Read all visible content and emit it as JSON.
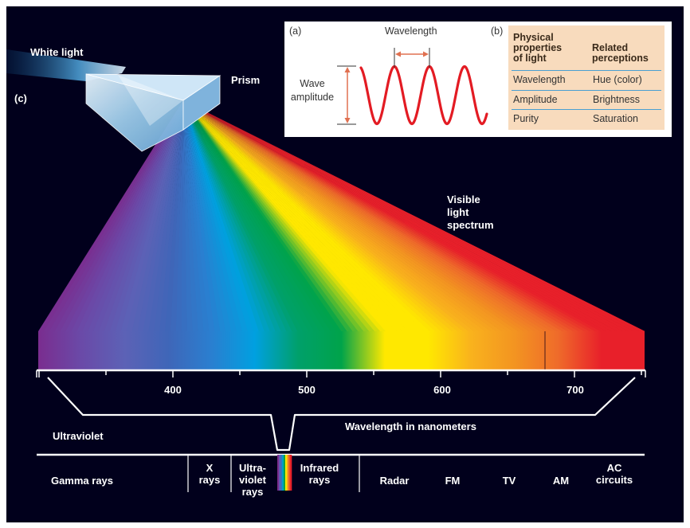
{
  "panel_label": "(c)",
  "white_light_label": "White light",
  "prism_label": "Prism",
  "visible_spectrum_label": "Visible\nlight\nspectrum",
  "wavelength_axis": {
    "ticks": [
      "400",
      "500",
      "600",
      "700"
    ],
    "title": "Wavelength in nanometers"
  },
  "ultraviolet_label": "Ultraviolet",
  "em_bands": [
    {
      "label": "Gamma rays"
    },
    {
      "label": "X\nrays"
    },
    {
      "label": "Ultra-\nviolet\nrays"
    },
    {
      "label": "Infrared\nrays"
    },
    {
      "label": "Radar"
    },
    {
      "label": "FM"
    },
    {
      "label": "TV"
    },
    {
      "label": "AM"
    },
    {
      "label": "AC\ncircuits"
    }
  ],
  "inset": {
    "a_label": "(a)",
    "wavelength_label": "Wavelength",
    "amplitude_label": "Wave\namplitude",
    "wave_color": "#e31b23",
    "b_label": "(b)",
    "table": {
      "headers": [
        "Physical\nproperties\nof light",
        "Related\nperceptions"
      ],
      "rows": [
        [
          "Wavelength",
          "Hue (color)"
        ],
        [
          "Amplitude",
          "Brightness"
        ],
        [
          "Purity",
          "Saturation"
        ]
      ]
    }
  },
  "colors": {
    "background": "#01001c",
    "table_fill": "#f8dbbd",
    "table_rule": "#4a9fd1",
    "spectrum_stops": [
      "#7a2d8f",
      "#6a4aa8",
      "#5c62b6",
      "#3f66b8",
      "#2a7fd0",
      "#00a0e0",
      "#00a06a",
      "#00a34a",
      "#ffe800",
      "#ffe800",
      "#f9b21d",
      "#f39421",
      "#ef6b2a",
      "#e8202a",
      "#e8202a"
    ]
  }
}
